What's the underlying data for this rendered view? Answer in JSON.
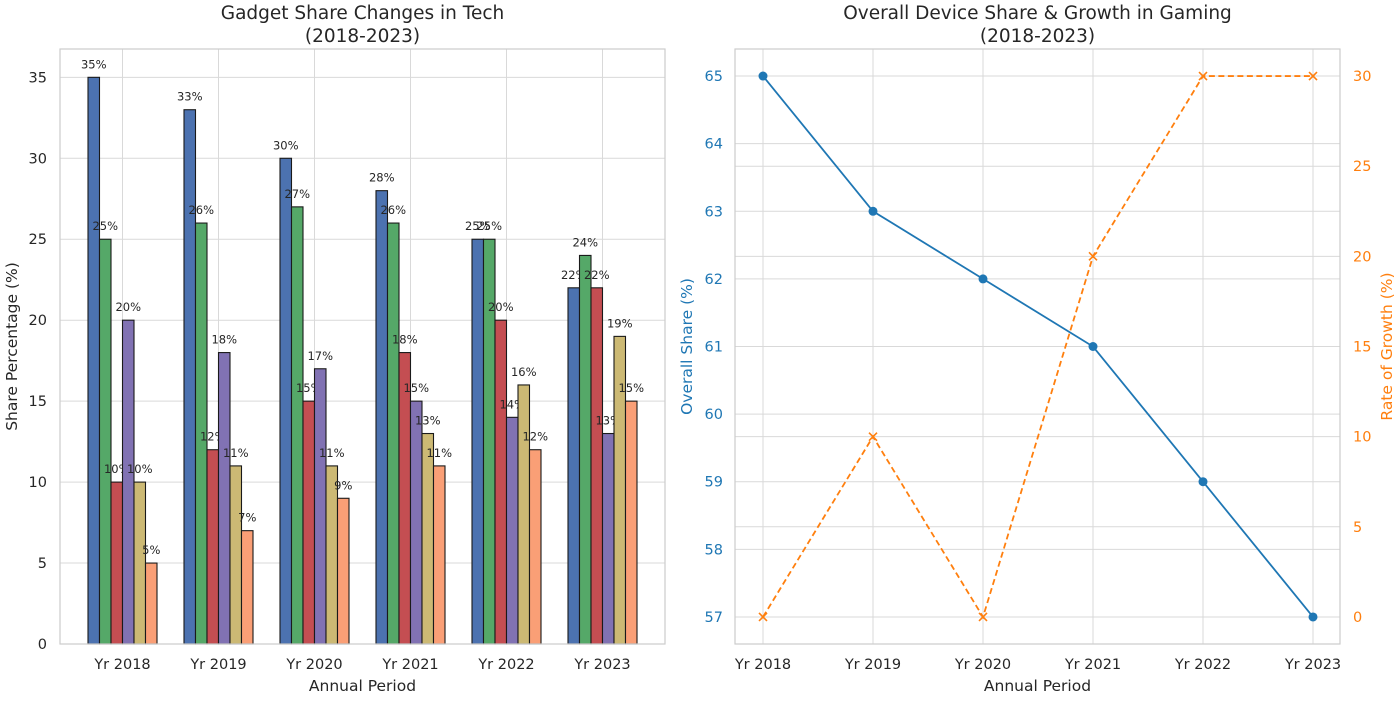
{
  "chart_data": [
    {
      "type": "bar",
      "title": "Gadget Share Changes in Tech\n(2018-2023)",
      "xlabel": "Annual Period",
      "ylabel": "Share Percentage (%)",
      "ylim": [
        0,
        36.75
      ],
      "yticks": [
        0,
        5,
        10,
        15,
        20,
        25,
        30,
        35
      ],
      "grid": true,
      "categories": [
        "Yr 2018",
        "Yr 2019",
        "Yr 2020",
        "Yr 2021",
        "Yr 2022",
        "Yr 2023"
      ],
      "series": [
        {
          "values": [
            35,
            33,
            30,
            28,
            25,
            22
          ],
          "color": "#4c72b0"
        },
        {
          "values": [
            25,
            26,
            27,
            26,
            25,
            24
          ],
          "color": "#55a868"
        },
        {
          "values": [
            10,
            12,
            15,
            18,
            20,
            22
          ],
          "color": "#c44e52"
        },
        {
          "values": [
            20,
            18,
            17,
            15,
            14,
            13
          ],
          "color": "#8172b3"
        },
        {
          "values": [
            10,
            11,
            11,
            13,
            16,
            19
          ],
          "color": "#ccb974"
        },
        {
          "values": [
            5,
            7,
            9,
            11,
            12,
            15
          ],
          "color": "#fa9f76"
        }
      ],
      "label_suffix": "%"
    },
    {
      "type": "line",
      "title": "Overall Device Share & Growth in Gaming\n(2018-2023)",
      "xlabel": "Annual Period",
      "categories": [
        "Yr 2018",
        "Yr 2019",
        "Yr 2020",
        "Yr 2021",
        "Yr 2022",
        "Yr 2023"
      ],
      "grid": true,
      "left_axis": {
        "label": "Overall Share (%)",
        "color": "#1f77b4",
        "ylim": [
          56.6,
          65.4
        ],
        "yticks": [
          57,
          58,
          59,
          60,
          61,
          62,
          63,
          64,
          65
        ],
        "values": [
          65,
          63,
          62,
          61,
          59,
          57
        ],
        "marker": "circle",
        "linestyle": "solid"
      },
      "right_axis": {
        "label": "Rate of Growth (%)",
        "color": "#ff7f0e",
        "ylim": [
          -1.5,
          31.5
        ],
        "yticks": [
          0,
          5,
          10,
          15,
          20,
          25,
          30
        ],
        "values": [
          0,
          10,
          0,
          20,
          30,
          30
        ],
        "marker": "x",
        "linestyle": "dashed"
      }
    }
  ]
}
